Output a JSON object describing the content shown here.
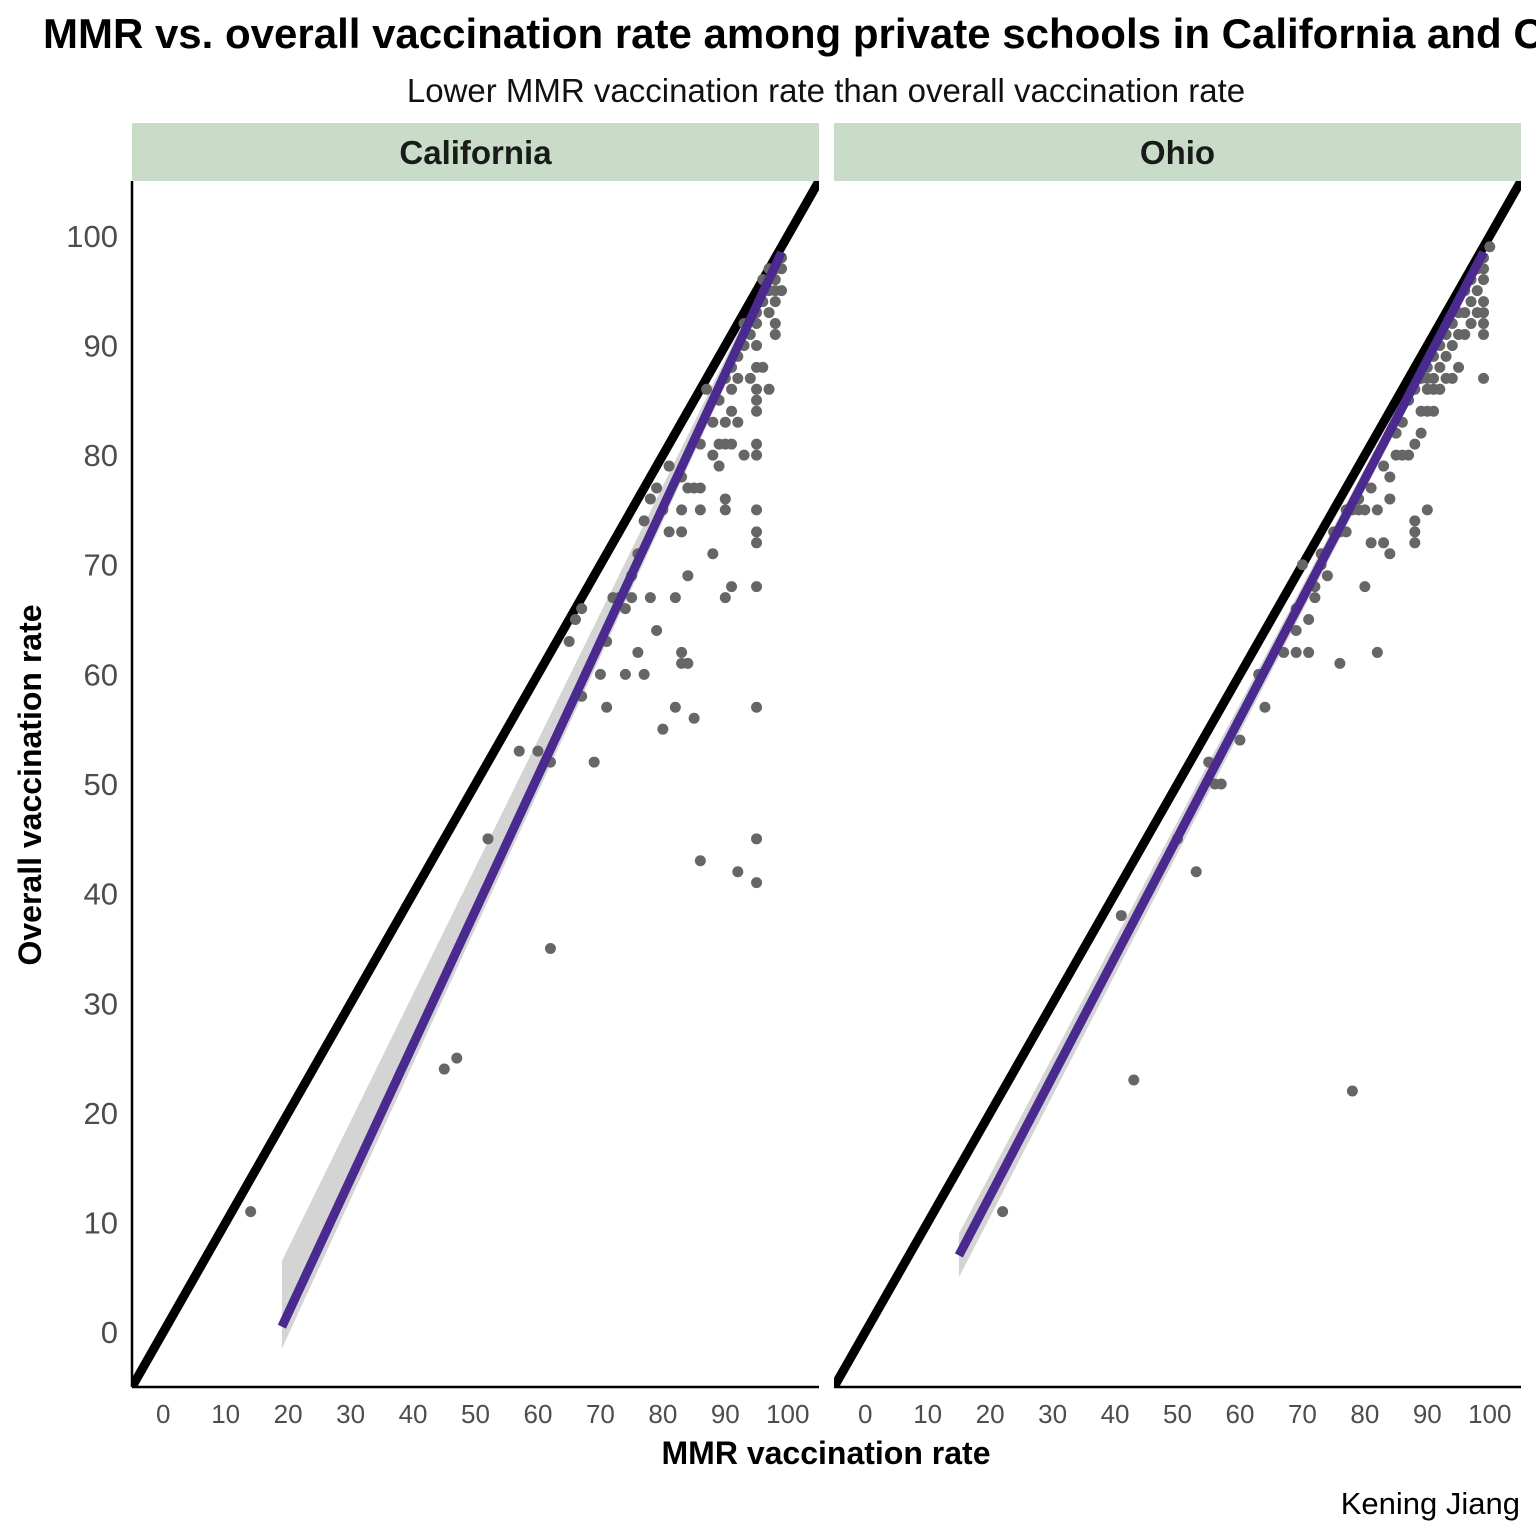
{
  "chart_data": {
    "type": "scatter",
    "title": "MMR vs. overall vaccination rate among private schools in California and Ohio",
    "subtitle": "Lower MMR vaccination rate than overall vaccination rate",
    "xlabel": "MMR vaccination rate",
    "ylabel": "Overall vaccination rate",
    "caption": "Kening Jiang",
    "xlim": [
      -5,
      105
    ],
    "ylim": [
      -5,
      105
    ],
    "x_ticks": [
      0,
      10,
      20,
      30,
      40,
      50,
      60,
      70,
      80,
      90,
      100
    ],
    "y_ticks": [
      0,
      10,
      20,
      30,
      40,
      50,
      60,
      70,
      80,
      90,
      100
    ],
    "grid": false,
    "colors": {
      "points": "#666666",
      "reference_line": "#000000",
      "fit_line": "#4b2a8f",
      "confidence_band": "#cccccc",
      "strip_fill": "#c8dcc8"
    },
    "reference_line": {
      "slope": 1,
      "intercept": 0
    },
    "panels": [
      {
        "name": "California",
        "fit_line": {
          "x": [
            19,
            99
          ],
          "y": [
            0.5,
            98.5
          ]
        },
        "confidence_band": {
          "x": [
            19,
            99
          ],
          "lower": [
            -1.5,
            97.5
          ],
          "upper": [
            6.5,
            99.2
          ]
        },
        "points": [
          [
            14,
            11
          ],
          [
            45,
            24
          ],
          [
            47,
            25
          ],
          [
            52,
            45
          ],
          [
            57,
            53
          ],
          [
            60,
            53
          ],
          [
            62,
            52
          ],
          [
            62,
            35
          ],
          [
            65,
            63
          ],
          [
            66,
            65
          ],
          [
            67,
            66
          ],
          [
            67,
            58
          ],
          [
            69,
            52
          ],
          [
            70,
            60
          ],
          [
            71,
            57
          ],
          [
            71,
            63
          ],
          [
            72,
            67
          ],
          [
            73,
            67
          ],
          [
            74,
            66
          ],
          [
            74,
            60
          ],
          [
            75,
            67
          ],
          [
            75,
            69
          ],
          [
            76,
            62
          ],
          [
            76,
            71
          ],
          [
            77,
            60
          ],
          [
            77,
            74
          ],
          [
            78,
            67
          ],
          [
            78,
            76
          ],
          [
            79,
            64
          ],
          [
            79,
            77
          ],
          [
            80,
            55
          ],
          [
            80,
            75
          ],
          [
            81,
            73
          ],
          [
            81,
            79
          ],
          [
            82,
            67
          ],
          [
            82,
            57
          ],
          [
            83,
            62
          ],
          [
            83,
            61
          ],
          [
            83,
            73
          ],
          [
            83,
            75
          ],
          [
            83,
            78
          ],
          [
            84,
            61
          ],
          [
            84,
            69
          ],
          [
            84,
            77
          ],
          [
            85,
            56
          ],
          [
            85,
            77
          ],
          [
            86,
            43
          ],
          [
            86,
            77
          ],
          [
            86,
            75
          ],
          [
            86,
            81
          ],
          [
            87,
            86
          ],
          [
            88,
            71
          ],
          [
            88,
            80
          ],
          [
            88,
            83
          ],
          [
            89,
            79
          ],
          [
            89,
            81
          ],
          [
            89,
            85
          ],
          [
            90,
            81
          ],
          [
            90,
            76
          ],
          [
            90,
            75
          ],
          [
            90,
            67
          ],
          [
            90,
            83
          ],
          [
            90,
            87
          ],
          [
            91,
            68
          ],
          [
            91,
            81
          ],
          [
            91,
            84
          ],
          [
            91,
            86
          ],
          [
            91,
            88
          ],
          [
            92,
            42
          ],
          [
            92,
            83
          ],
          [
            92,
            87
          ],
          [
            92,
            89
          ],
          [
            93,
            80
          ],
          [
            93,
            90
          ],
          [
            93,
            92
          ],
          [
            94,
            87
          ],
          [
            94,
            91
          ],
          [
            95,
            41
          ],
          [
            95,
            45
          ],
          [
            95,
            57
          ],
          [
            95,
            68
          ],
          [
            95,
            72
          ],
          [
            95,
            73
          ],
          [
            95,
            75
          ],
          [
            95,
            80
          ],
          [
            95,
            81
          ],
          [
            95,
            84
          ],
          [
            95,
            85
          ],
          [
            95,
            86
          ],
          [
            95,
            88
          ],
          [
            95,
            90
          ],
          [
            95,
            92
          ],
          [
            95,
            93
          ],
          [
            96,
            88
          ],
          [
            96,
            94
          ],
          [
            97,
            86
          ],
          [
            97,
            93
          ],
          [
            97,
            95
          ],
          [
            98,
            91
          ],
          [
            98,
            92
          ],
          [
            98,
            94
          ],
          [
            98,
            95
          ],
          [
            98,
            96
          ],
          [
            99,
            97
          ],
          [
            99,
            98
          ],
          [
            99,
            95
          ],
          [
            96,
            96
          ],
          [
            97,
            97
          ],
          [
            98,
            97
          ]
        ]
      },
      {
        "name": "Ohio",
        "fit_line": {
          "x": [
            15,
            99
          ],
          "y": [
            7,
            98.5
          ]
        },
        "confidence_band": {
          "x": [
            15,
            99
          ],
          "lower": [
            5,
            97.8
          ],
          "upper": [
            9,
            99.2
          ]
        },
        "points": [
          [
            22,
            11
          ],
          [
            41,
            38
          ],
          [
            43,
            23
          ],
          [
            50,
            45
          ],
          [
            53,
            42
          ],
          [
            55,
            52
          ],
          [
            56,
            50
          ],
          [
            57,
            50
          ],
          [
            60,
            54
          ],
          [
            63,
            60
          ],
          [
            64,
            57
          ],
          [
            67,
            62
          ],
          [
            69,
            62
          ],
          [
            69,
            64
          ],
          [
            69,
            66
          ],
          [
            70,
            70
          ],
          [
            71,
            62
          ],
          [
            71,
            65
          ],
          [
            72,
            67
          ],
          [
            72,
            68
          ],
          [
            73,
            70
          ],
          [
            73,
            71
          ],
          [
            74,
            69
          ],
          [
            75,
            73
          ],
          [
            76,
            61
          ],
          [
            76,
            73
          ],
          [
            77,
            73
          ],
          [
            77,
            75
          ],
          [
            78,
            22
          ],
          [
            78,
            75
          ],
          [
            79,
            76
          ],
          [
            79,
            75
          ],
          [
            80,
            68
          ],
          [
            80,
            75
          ],
          [
            81,
            72
          ],
          [
            81,
            77
          ],
          [
            82,
            62
          ],
          [
            82,
            75
          ],
          [
            83,
            79
          ],
          [
            83,
            72
          ],
          [
            84,
            71
          ],
          [
            84,
            76
          ],
          [
            84,
            78
          ],
          [
            85,
            80
          ],
          [
            85,
            82
          ],
          [
            86,
            80
          ],
          [
            86,
            83
          ],
          [
            87,
            80
          ],
          [
            87,
            85
          ],
          [
            88,
            72
          ],
          [
            88,
            73
          ],
          [
            88,
            74
          ],
          [
            88,
            81
          ],
          [
            88,
            86
          ],
          [
            89,
            82
          ],
          [
            89,
            84
          ],
          [
            89,
            87
          ],
          [
            90,
            75
          ],
          [
            90,
            84
          ],
          [
            90,
            86
          ],
          [
            90,
            87
          ],
          [
            90,
            88
          ],
          [
            91,
            84
          ],
          [
            91,
            86
          ],
          [
            91,
            87
          ],
          [
            91,
            89
          ],
          [
            92,
            86
          ],
          [
            92,
            88
          ],
          [
            92,
            90
          ],
          [
            93,
            87
          ],
          [
            93,
            89
          ],
          [
            93,
            91
          ],
          [
            94,
            87
          ],
          [
            94,
            90
          ],
          [
            94,
            92
          ],
          [
            95,
            88
          ],
          [
            95,
            91
          ],
          [
            95,
            93
          ],
          [
            96,
            91
          ],
          [
            96,
            93
          ],
          [
            96,
            95
          ],
          [
            97,
            92
          ],
          [
            97,
            94
          ],
          [
            97,
            96
          ],
          [
            98,
            93
          ],
          [
            98,
            95
          ],
          [
            98,
            97
          ],
          [
            99,
            87
          ],
          [
            99,
            91
          ],
          [
            99,
            92
          ],
          [
            99,
            93
          ],
          [
            99,
            94
          ],
          [
            99,
            96
          ],
          [
            99,
            97
          ],
          [
            99,
            98
          ],
          [
            100,
            99
          ]
        ]
      }
    ]
  }
}
